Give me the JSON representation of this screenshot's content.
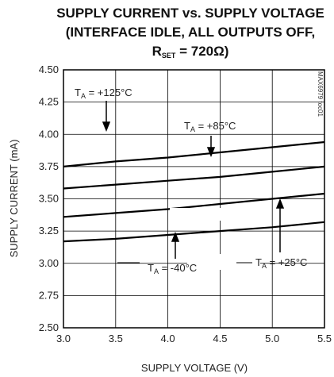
{
  "chart_data": {
    "type": "line",
    "title": [
      "SUPPLY CURRENT vs. SUPPLY VOLTAGE",
      "(INTERFACE IDLE, ALL OUTPUTS OFF,"
    ],
    "title_line3": {
      "main": "R",
      "sub": "SET",
      "rest": " = 720Ω)"
    },
    "xlabel": "SUPPLY VOLTAGE (V)",
    "ylabel": "SUPPLY CURRENT (mA)",
    "xlim": [
      3.0,
      5.5
    ],
    "ylim": [
      2.5,
      4.5
    ],
    "xticks": [
      "3.0",
      "3.5",
      "4.0",
      "4.5",
      "5.0",
      "5.5"
    ],
    "yticks": [
      "2.50",
      "2.75",
      "3.00",
      "3.25",
      "3.50",
      "3.75",
      "4.00",
      "4.25",
      "4.50"
    ],
    "grid": true,
    "watermark": "MAX6979 toc01",
    "series": [
      {
        "name": "TA = +125°C",
        "x": [
          3.0,
          3.5,
          4.0,
          4.5,
          5.0,
          5.5
        ],
        "values": [
          3.75,
          3.79,
          3.82,
          3.86,
          3.9,
          3.94
        ]
      },
      {
        "name": "TA = +85°C",
        "x": [
          3.0,
          3.5,
          4.0,
          4.5,
          5.0,
          5.5
        ],
        "values": [
          3.58,
          3.61,
          3.64,
          3.67,
          3.71,
          3.75
        ]
      },
      {
        "name": "TA = +25°C",
        "x": [
          3.0,
          3.5,
          4.0,
          4.5,
          5.0,
          5.5
        ],
        "values": [
          3.36,
          3.39,
          3.42,
          3.46,
          3.5,
          3.54
        ]
      },
      {
        "name": "TA = -40°C",
        "x": [
          3.0,
          3.5,
          4.0,
          4.5,
          5.0,
          5.5
        ],
        "values": [
          3.17,
          3.19,
          3.22,
          3.25,
          3.28,
          3.32
        ]
      }
    ],
    "annotations": [
      {
        "pre": "T",
        "sub": "A",
        "post": " = +125°C"
      },
      {
        "pre": "T",
        "sub": "A",
        "post": " = +85°C"
      },
      {
        "pre": "T",
        "sub": "A",
        "post": " = -40°C"
      },
      {
        "pre": "T",
        "sub": "A",
        "post": " = +25°C"
      }
    ]
  }
}
